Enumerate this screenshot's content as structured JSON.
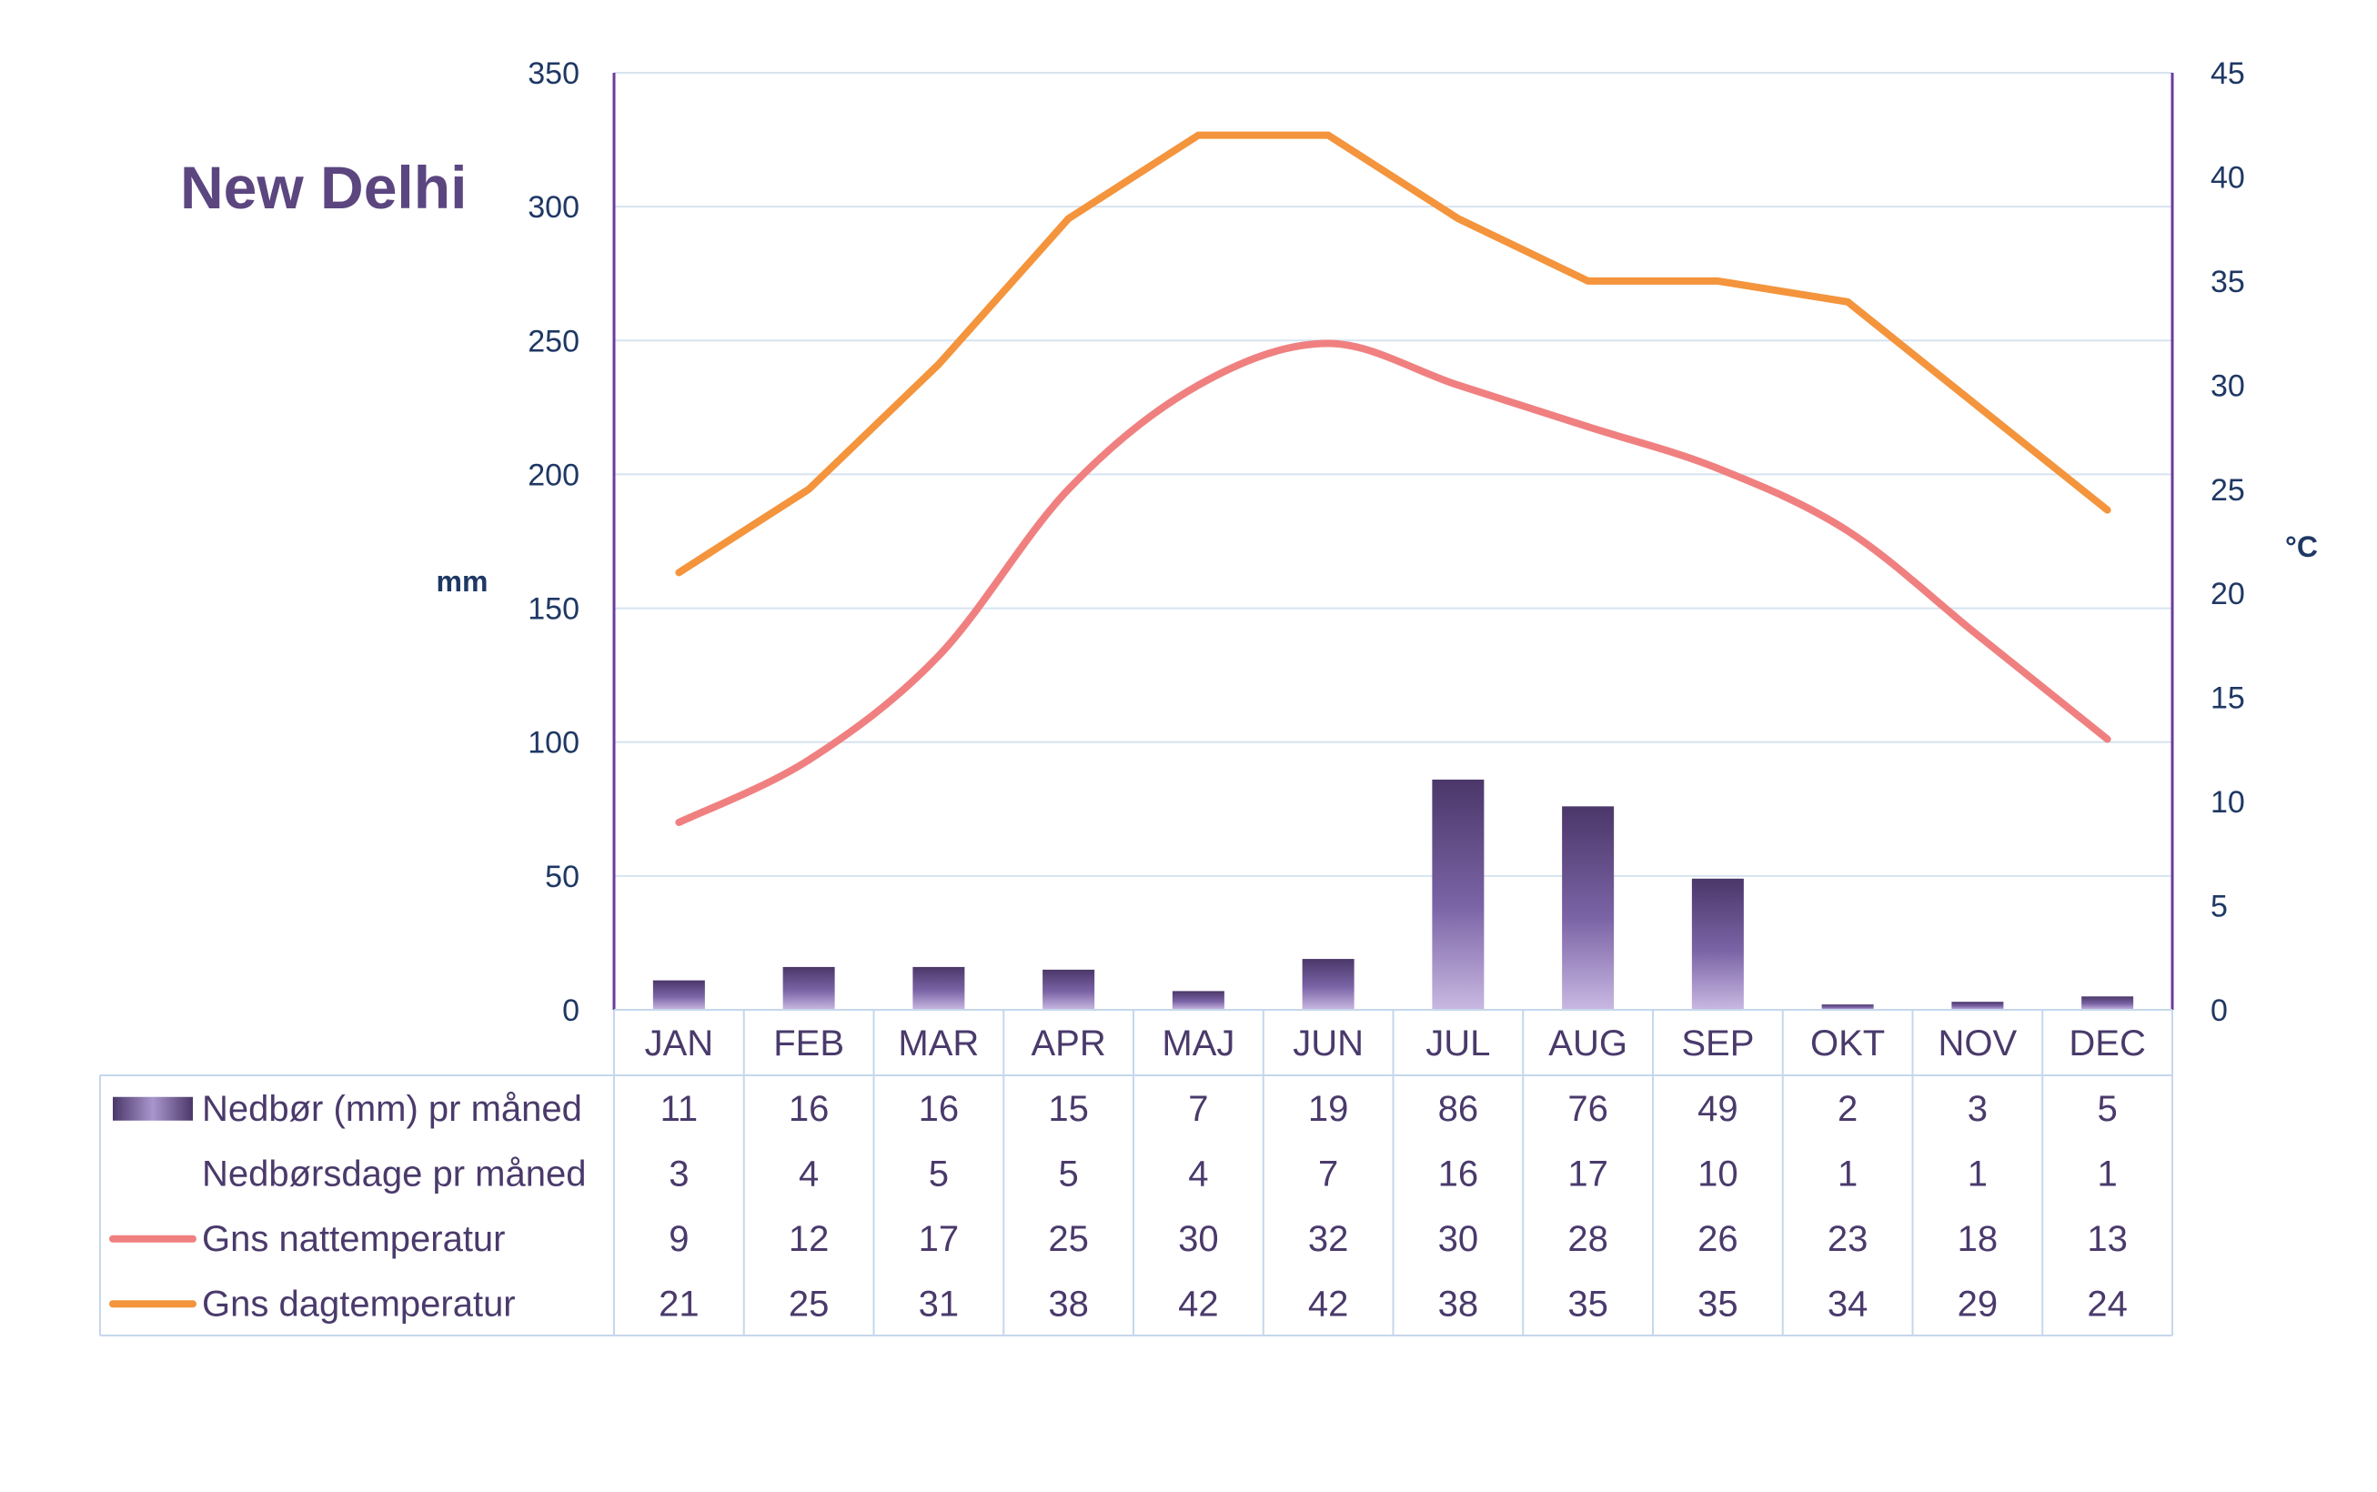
{
  "title": "New Delhi",
  "chart_data": {
    "type": "bar",
    "categories": [
      "JAN",
      "FEB",
      "MAR",
      "APR",
      "MAJ",
      "JUN",
      "JUL",
      "AUG",
      "SEP",
      "OKT",
      "NOV",
      "DEC"
    ],
    "series": [
      {
        "name": "Nedbør (mm) pr måned",
        "type": "bar",
        "axis": "left",
        "color": "#5b4680",
        "values": [
          11,
          16,
          16,
          15,
          7,
          19,
          86,
          76,
          49,
          2,
          3,
          5
        ]
      },
      {
        "name": "Nedbørsdage pr måned",
        "type": "table",
        "values": [
          3,
          4,
          5,
          5,
          4,
          7,
          16,
          17,
          10,
          1,
          1,
          1
        ]
      },
      {
        "name": "Gns nattemperatur",
        "type": "line",
        "axis": "right",
        "color": "#f08080",
        "values": [
          9,
          12,
          17,
          25,
          30,
          32,
          30,
          28,
          26,
          23,
          18,
          13
        ]
      },
      {
        "name": "Gns dagtemperatur",
        "type": "line",
        "axis": "right",
        "color": "#f4943c",
        "values": [
          21,
          25,
          31,
          38,
          42,
          42,
          38,
          35,
          35,
          34,
          29,
          24
        ]
      }
    ],
    "ylabel": "mm",
    "y2label": "°C",
    "ylim": [
      0,
      350
    ],
    "y2lim": [
      0,
      45
    ],
    "yticks": [
      0,
      50,
      100,
      150,
      200,
      250,
      300,
      350
    ],
    "y2ticks": [
      0,
      5,
      10,
      15,
      20,
      25,
      30,
      35,
      40,
      45
    ],
    "grid": true,
    "legend": "data table below chart"
  }
}
